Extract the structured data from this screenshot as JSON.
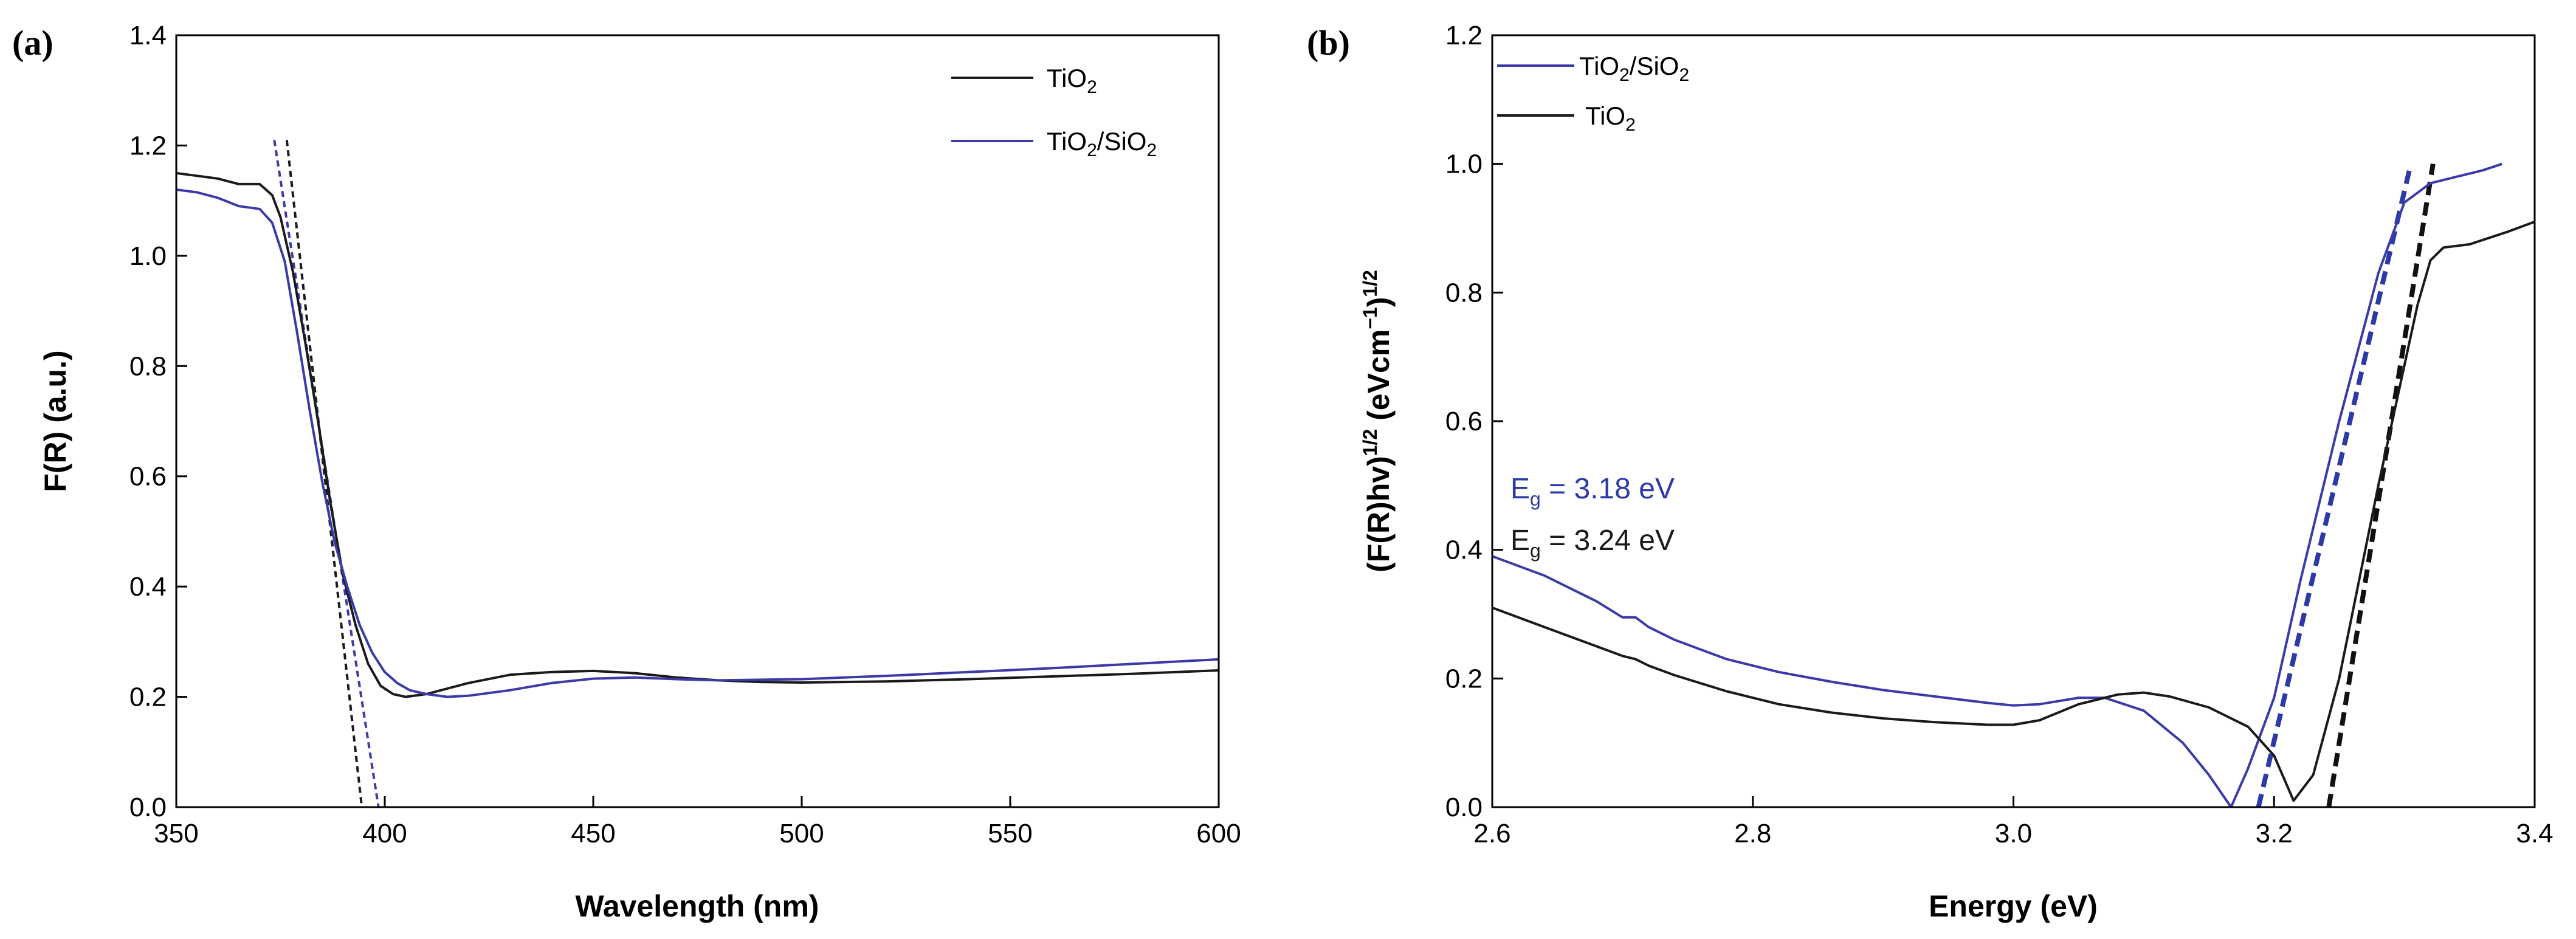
{
  "chart_data": [
    {
      "panel": "(a)",
      "type": "line",
      "xlabel": "Wavelength (nm)",
      "ylabel": "F(R) (a.u.)",
      "xlim": [
        350,
        600
      ],
      "ylim": [
        0.0,
        1.4
      ],
      "xticks": [
        "350",
        "400",
        "450",
        "500",
        "550",
        "600"
      ],
      "yticks": [
        "0.0",
        "0.2",
        "0.4",
        "0.6",
        "0.8",
        "1.0",
        "1.2",
        "1.4"
      ],
      "legend_position": "top-right",
      "series": [
        {
          "name": "TiO2",
          "name_base": "TiO",
          "name_sub": "2",
          "color": "#1a1a1a",
          "x": [
            350,
            355,
            360,
            365,
            370,
            373,
            375,
            378,
            381,
            384,
            387,
            390,
            393,
            396,
            399,
            402,
            405,
            410,
            420,
            430,
            440,
            450,
            460,
            470,
            480,
            490,
            500,
            520,
            540,
            560,
            580,
            600
          ],
          "y": [
            1.15,
            1.145,
            1.14,
            1.13,
            1.13,
            1.11,
            1.07,
            0.97,
            0.84,
            0.7,
            0.55,
            0.42,
            0.33,
            0.26,
            0.22,
            0.205,
            0.2,
            0.205,
            0.225,
            0.24,
            0.245,
            0.247,
            0.243,
            0.235,
            0.23,
            0.227,
            0.226,
            0.228,
            0.232,
            0.237,
            0.242,
            0.248
          ]
        },
        {
          "name": "TiO2/SiO2",
          "name_base": "TiO",
          "name_sub": "2",
          "name_mid": "/SiO",
          "name_sub2": "2",
          "color": "#3a3aa8",
          "x": [
            350,
            355,
            360,
            365,
            370,
            373,
            376,
            379,
            382,
            385,
            388,
            391,
            394,
            397,
            400,
            403,
            406,
            410,
            415,
            420,
            430,
            440,
            450,
            460,
            470,
            480,
            500,
            520,
            540,
            560,
            580,
            600
          ],
          "y": [
            1.12,
            1.115,
            1.105,
            1.09,
            1.085,
            1.06,
            0.99,
            0.86,
            0.72,
            0.59,
            0.48,
            0.4,
            0.33,
            0.28,
            0.245,
            0.225,
            0.212,
            0.205,
            0.2,
            0.202,
            0.212,
            0.225,
            0.233,
            0.235,
            0.232,
            0.23,
            0.232,
            0.238,
            0.245,
            0.252,
            0.26,
            0.268
          ]
        }
      ],
      "tangent_lines": [
        {
          "color": "#1a1a1a",
          "x": [
            376.5,
            394.5
          ],
          "y": [
            1.21,
            0.0
          ]
        },
        {
          "color": "#3a3aa8",
          "x": [
            373.5,
            398.5
          ],
          "y": [
            1.21,
            0.0
          ]
        }
      ]
    },
    {
      "panel": "(b)",
      "type": "line",
      "xlabel": "Energy (eV)",
      "ylabel": "(F(R)hv)^1/2 (eVcm^-1)^1/2",
      "ylabel_parts": {
        "p1": "(F(R)hv)",
        "s1": "1/2",
        "p2": " (eVcm",
        "s2": "−1",
        "p3": ")",
        "s3": "1/2"
      },
      "xlim": [
        2.6,
        3.4
      ],
      "ylim": [
        0.0,
        1.2
      ],
      "xticks": [
        "2.6",
        "2.8",
        "3.0",
        "3.2",
        "3.4"
      ],
      "yticks": [
        "0.0",
        "0.2",
        "0.4",
        "0.6",
        "0.8",
        "1.0",
        "1.2"
      ],
      "legend_position": "top-left",
      "series": [
        {
          "name": "TiO2/SiO2",
          "name_base": "TiO",
          "name_sub": "2",
          "name_mid": "/SiO",
          "name_sub2": "2",
          "color": "#3a3aa8",
          "x": [
            2.6,
            2.64,
            2.68,
            2.7,
            2.71,
            2.72,
            2.74,
            2.78,
            2.82,
            2.86,
            2.9,
            2.94,
            2.98,
            3.0,
            3.02,
            3.05,
            3.07,
            3.1,
            3.13,
            3.15,
            3.167,
            3.18,
            3.2,
            3.22,
            3.25,
            3.28,
            3.3,
            3.31,
            3.32,
            3.34,
            3.36,
            3.375
          ],
          "y": [
            0.39,
            0.36,
            0.32,
            0.295,
            0.295,
            0.28,
            0.26,
            0.23,
            0.21,
            0.195,
            0.182,
            0.172,
            0.162,
            0.158,
            0.16,
            0.17,
            0.17,
            0.15,
            0.1,
            0.05,
            0.0,
            0.06,
            0.17,
            0.35,
            0.6,
            0.83,
            0.94,
            0.955,
            0.97,
            0.98,
            0.99,
            1.0
          ]
        },
        {
          "name": "TiO2",
          "name_base": "TiO",
          "name_sub": "2",
          "color": "#1a1a1a",
          "x": [
            2.6,
            2.64,
            2.68,
            2.7,
            2.71,
            2.72,
            2.74,
            2.78,
            2.82,
            2.86,
            2.9,
            2.94,
            2.98,
            3.0,
            3.02,
            3.05,
            3.08,
            3.1,
            3.12,
            3.15,
            3.18,
            3.2,
            3.215,
            3.23,
            3.25,
            3.28,
            3.31,
            3.32,
            3.33,
            3.35,
            3.38,
            3.4
          ],
          "y": [
            0.31,
            0.28,
            0.25,
            0.235,
            0.23,
            0.22,
            0.205,
            0.18,
            0.16,
            0.147,
            0.138,
            0.132,
            0.128,
            0.128,
            0.135,
            0.16,
            0.175,
            0.178,
            0.172,
            0.155,
            0.125,
            0.08,
            0.01,
            0.05,
            0.2,
            0.5,
            0.78,
            0.85,
            0.87,
            0.875,
            0.895,
            0.91
          ]
        }
      ],
      "tangent_lines": [
        {
          "color": "#2b3aa6",
          "x": [
            3.188,
            3.305
          ],
          "y": [
            0.0,
            1.0
          ]
        },
        {
          "color": "#111111",
          "x": [
            3.242,
            3.322
          ],
          "y": [
            0.0,
            1.0
          ]
        }
      ],
      "annotations": [
        {
          "base": "E",
          "sub": "g",
          "rest": " = 3.18 eV",
          "color": "#2b3aa6"
        },
        {
          "base": "E",
          "sub": "g",
          "rest": " = 3.24 eV",
          "color": "#1a1a1a"
        }
      ]
    }
  ]
}
